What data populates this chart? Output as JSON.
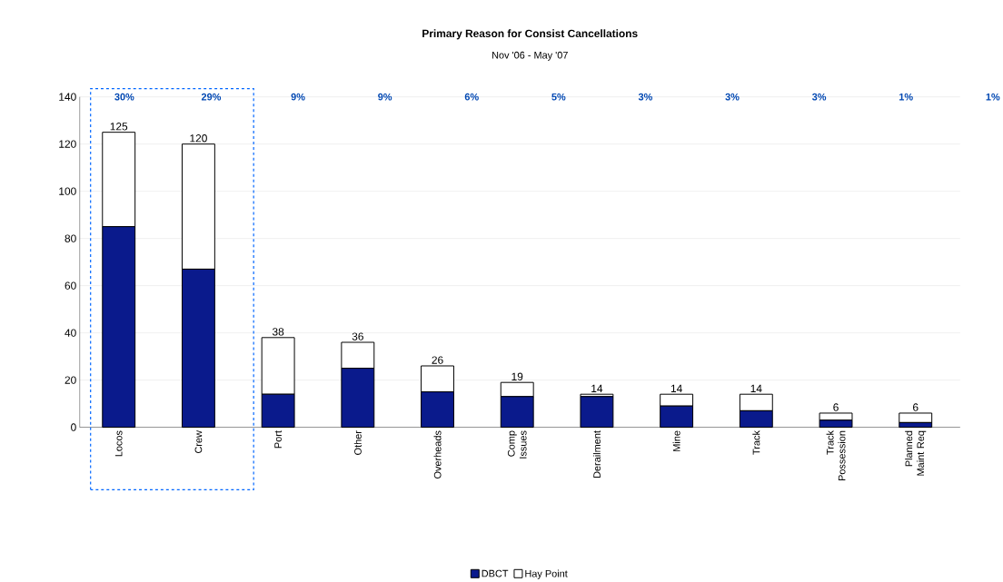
{
  "chart_data": {
    "type": "bar",
    "stacked": true,
    "title": "Primary Reason for Consist Cancellations",
    "subtitle": "Nov '06 - May '07",
    "categories": [
      "Locos",
      "Crew",
      "Port",
      "Other",
      "Overheads",
      "Comp Issues",
      "Derailment",
      "Mine",
      "Track",
      "Track Possession",
      "Planned Maint Req"
    ],
    "series": [
      {
        "name": "DBCT",
        "color": "#0a1a8c",
        "values": [
          85,
          67,
          14,
          25,
          15,
          13,
          13,
          9,
          7,
          3,
          2
        ]
      },
      {
        "name": "Hay Point",
        "color": "#ffffff",
        "values": [
          40,
          53,
          24,
          11,
          11,
          6,
          1,
          5,
          7,
          3,
          4
        ]
      }
    ],
    "totals": [
      "125",
      "120",
      "38",
      "36",
      "26",
      "19",
      "14",
      "14",
      "14",
      "6",
      "6"
    ],
    "annotations": [
      "30%",
      "29%",
      "9%",
      "9%",
      "6%",
      "5%",
      "3%",
      "3%",
      "3%",
      "1%",
      "1%"
    ],
    "ylim": [
      0,
      140
    ],
    "yticks": [
      0,
      20,
      40,
      60,
      80,
      100,
      120,
      140
    ],
    "grid": "y",
    "legend": "bottom"
  }
}
